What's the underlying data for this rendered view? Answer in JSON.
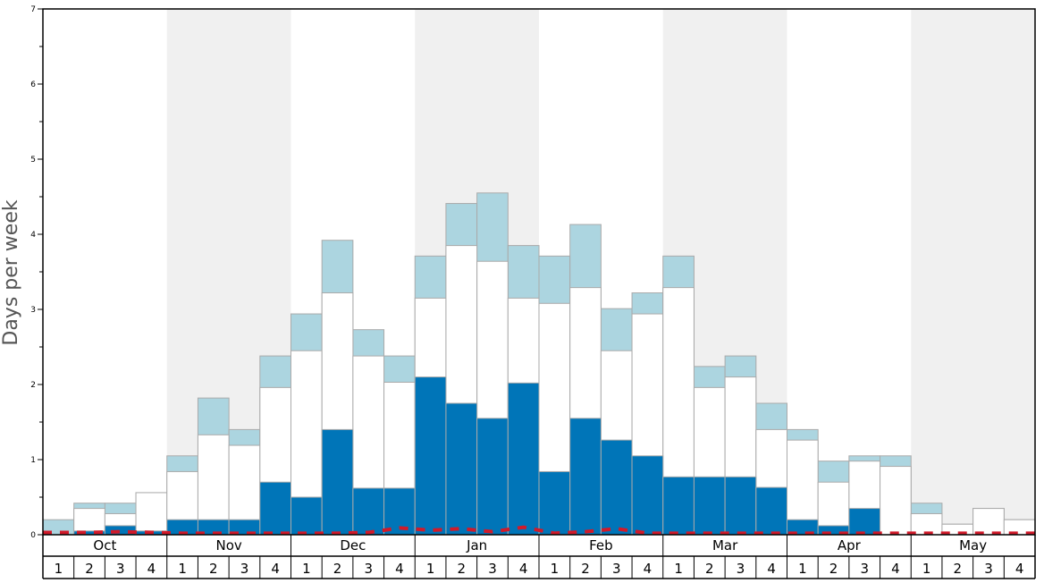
{
  "chart_data": {
    "type": "bar",
    "ylabel": "Days per week",
    "ylim": [
      0,
      7
    ],
    "y_major_ticks": [
      "0",
      "1",
      "2",
      "3",
      "4",
      "5",
      "6",
      "7"
    ],
    "months": [
      "Oct",
      "Nov",
      "Dec",
      "Jan",
      "Feb",
      "Mar",
      "Apr",
      "May"
    ],
    "week_labels": [
      "1",
      "2",
      "3",
      "4"
    ],
    "stacked_levels_note": "",
    "colors": {
      "dark": "#0075b8",
      "white": "#ffffff",
      "light": "#acd5e0",
      "dashed_line": "#d11a2a",
      "band": "#f0f0f0",
      "bar_edge": "#aaaaaa"
    },
    "series": [
      {
        "values": [
          0.0,
          0.05,
          0.12,
          0.05,
          0.2,
          0.2,
          0.2,
          0.7,
          0.5,
          1.4,
          0.62,
          0.62,
          2.1,
          1.75,
          1.55,
          2.02,
          0.84,
          1.55,
          1.26,
          1.05,
          0.77,
          0.77,
          0.77,
          0.63,
          0.2,
          0.12,
          0.35,
          0.0,
          0.0,
          0.0,
          0.0,
          0.0
        ]
      },
      {
        "values": [
          0.0,
          0.35,
          0.28,
          0.56,
          0.84,
          1.33,
          1.19,
          1.96,
          2.45,
          3.22,
          2.38,
          2.03,
          3.15,
          3.85,
          3.64,
          3.15,
          3.08,
          3.29,
          2.45,
          2.94,
          3.29,
          1.96,
          2.1,
          1.4,
          1.26,
          0.7,
          0.98,
          0.91,
          0.28,
          0.14,
          0.35,
          0.2
        ]
      },
      {
        "values": [
          0.2,
          0.42,
          0.42,
          0.56,
          1.05,
          1.82,
          1.4,
          2.38,
          2.94,
          3.92,
          2.73,
          2.38,
          3.71,
          4.41,
          4.55,
          3.85,
          3.71,
          4.13,
          3.01,
          3.22,
          3.71,
          2.24,
          2.38,
          1.75,
          1.4,
          0.98,
          1.05,
          1.05,
          0.42,
          0.14,
          0.35,
          0.2
        ]
      },
      {
        "type": "line",
        "style": "dashed",
        "values": [
          0.03,
          0.03,
          0.04,
          0.03,
          0.02,
          0.02,
          0.02,
          0.02,
          0.02,
          0.02,
          0.03,
          0.09,
          0.06,
          0.08,
          0.04,
          0.1,
          0.02,
          0.04,
          0.08,
          0.02,
          0.02,
          0.02,
          0.02,
          0.02,
          0.02,
          0.02,
          0.02,
          0.02,
          0.02,
          0.02,
          0.02,
          0.02
        ]
      }
    ]
  }
}
